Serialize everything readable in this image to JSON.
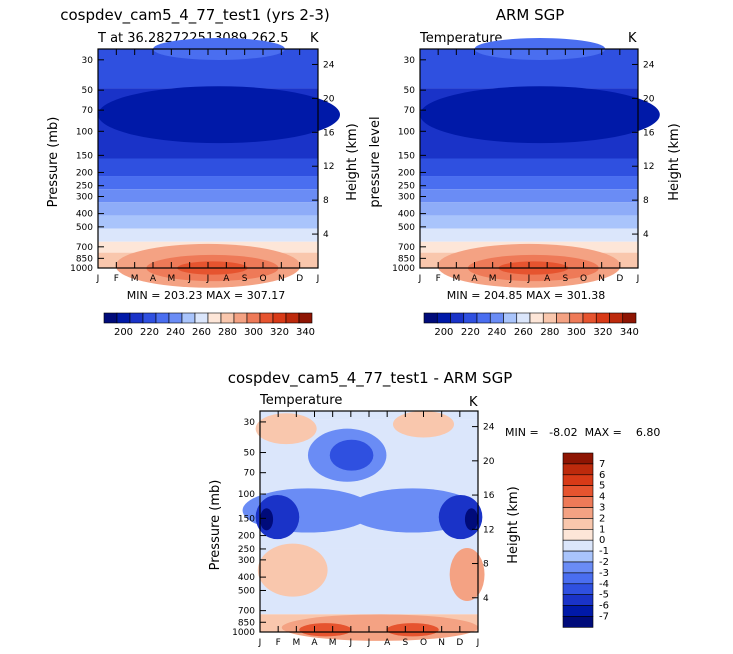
{
  "colors": {
    "level_colors_abs": [
      "#000b7a",
      "#0019a8",
      "#1a33c8",
      "#2f50e0",
      "#4a6ef0",
      "#6a8cf5",
      "#a9c4fb",
      "#dbe6fb",
      "#fde6d8",
      "#f9c7ad",
      "#f4a283",
      "#ee7a58",
      "#e6542f",
      "#d83a17",
      "#bd2a0c",
      "#8e1503"
    ],
    "level_colors_diff": [
      "#000b7a",
      "#0019a8",
      "#1a33c8",
      "#2f50e0",
      "#4a6ef0",
      "#6a8cf5",
      "#a9c4fb",
      "#dbe6fb",
      "#fde6d8",
      "#f9c7ad",
      "#f4a283",
      "#ee7a58",
      "#e6542f",
      "#d83a17",
      "#bd2a0c",
      "#8e1503"
    ]
  },
  "chart_data": [
    {
      "type": "contour",
      "title": "cospdev_cam5_4_77_test1 (yrs 2-3)",
      "subtitle_left": "T at 36.282722513089,262.5",
      "subtitle_right": "K",
      "ylabel": "Pressure (mb)",
      "ylabel_right": "Height (km)",
      "x_ticks": [
        "J",
        "F",
        "M",
        "A",
        "M",
        "J",
        "J",
        "A",
        "S",
        "O",
        "N",
        "D",
        "J"
      ],
      "y_ticks": [
        "30",
        "50",
        "70",
        "100",
        "150",
        "200",
        "250",
        "300",
        "400",
        "500",
        "700",
        "850",
        "1000"
      ],
      "y_ticks_right": [
        "24",
        "20",
        "16",
        "12",
        "8",
        "4"
      ],
      "min_max_text": "MIN = 203.23  MAX = 307.17",
      "colorbar_labels": [
        "200",
        "220",
        "240",
        "260",
        "280",
        "300",
        "320",
        "340"
      ],
      "levels": [
        200,
        208,
        216,
        224,
        232,
        240,
        248,
        256,
        264,
        272,
        280,
        288,
        296,
        304,
        312,
        320,
        328,
        336,
        344
      ]
    },
    {
      "type": "contour",
      "title": "ARM SGP",
      "subtitle_left": "Temperature",
      "subtitle_right": "K",
      "ylabel": "pressure level",
      "ylabel_right": "Height (km)",
      "x_ticks": [
        "J",
        "F",
        "M",
        "A",
        "M",
        "J",
        "J",
        "A",
        "S",
        "O",
        "N",
        "D",
        "J"
      ],
      "y_ticks": [
        "30",
        "50",
        "70",
        "100",
        "150",
        "200",
        "250",
        "300",
        "400",
        "500",
        "700",
        "850",
        "1000"
      ],
      "y_ticks_right": [
        "24",
        "20",
        "16",
        "12",
        "8",
        "4"
      ],
      "min_max_text": "MIN = 204.85  MAX = 301.38",
      "colorbar_labels": [
        "200",
        "220",
        "240",
        "260",
        "280",
        "300",
        "320",
        "340"
      ]
    },
    {
      "type": "contour",
      "title": "cospdev_cam5_4_77_test1 - ARM SGP",
      "subtitle_left": "Temperature",
      "subtitle_right": "K",
      "ylabel": "Pressure (mb)",
      "ylabel_right": "Height (km)",
      "x_ticks": [
        "J",
        "F",
        "M",
        "A",
        "M",
        "J",
        "J",
        "A",
        "S",
        "O",
        "N",
        "D",
        "J"
      ],
      "y_ticks": [
        "30",
        "50",
        "70",
        "100",
        "150",
        "200",
        "250",
        "300",
        "400",
        "500",
        "700",
        "850",
        "1000"
      ],
      "y_ticks_right": [
        "24",
        "20",
        "16",
        "12",
        "8",
        "4"
      ],
      "min_max_text": "MIN =   -8.02  MAX =    6.80",
      "colorbar_labels": [
        "7",
        "6",
        "5",
        "4",
        "3",
        "2",
        "1",
        "0",
        "-1",
        "-2",
        "-3",
        "-4",
        "-5",
        "-6",
        "-7"
      ]
    }
  ]
}
